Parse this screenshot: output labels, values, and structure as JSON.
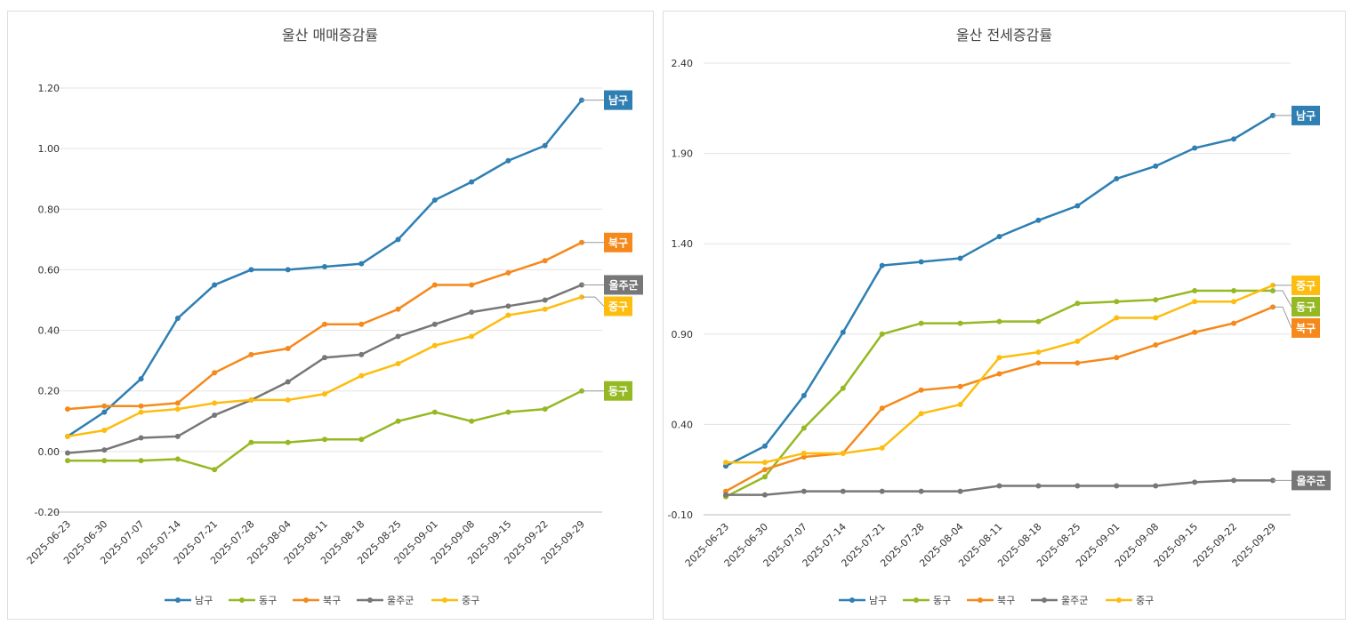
{
  "chart_data": [
    {
      "type": "line",
      "title": "울산 매매증감률",
      "xlabel": "",
      "ylabel": "",
      "ylim": [
        -0.2,
        1.2
      ],
      "ytick_step": 0.2,
      "ytick_labels": [
        "-0.20",
        "0.00",
        "0.20",
        "0.40",
        "0.60",
        "0.80",
        "1.00",
        "1.20"
      ],
      "grid": true,
      "legend": "bottom",
      "x": [
        "2025-06-23",
        "2025-06-30",
        "2025-07-07",
        "2025-07-14",
        "2025-07-21",
        "2025-07-28",
        "2025-08-04",
        "2025-08-11",
        "2025-08-18",
        "2025-08-25",
        "2025-09-01",
        "2025-09-08",
        "2025-09-15",
        "2025-09-22",
        "2025-09-29"
      ],
      "series": [
        {
          "name": "남구",
          "color": "#2f7fb3",
          "values": [
            0.05,
            0.13,
            0.24,
            0.44,
            0.55,
            0.6,
            0.6,
            0.61,
            0.62,
            0.7,
            0.83,
            0.89,
            0.96,
            1.01,
            1.16
          ]
        },
        {
          "name": "동구",
          "color": "#95b923",
          "values": [
            -0.03,
            -0.03,
            -0.03,
            -0.025,
            -0.06,
            0.03,
            0.03,
            0.04,
            0.04,
            0.1,
            0.13,
            0.1,
            0.13,
            0.14,
            0.2
          ]
        },
        {
          "name": "북구",
          "color": "#f5891b",
          "values": [
            0.14,
            0.15,
            0.15,
            0.16,
            0.26,
            0.32,
            0.34,
            0.42,
            0.42,
            0.47,
            0.55,
            0.55,
            0.59,
            0.63,
            0.69
          ]
        },
        {
          "name": "울주군",
          "color": "#777777",
          "values": [
            -0.005,
            0.005,
            0.045,
            0.05,
            0.12,
            0.17,
            0.23,
            0.31,
            0.32,
            0.38,
            0.42,
            0.46,
            0.48,
            0.5,
            0.55
          ]
        },
        {
          "name": "중구",
          "color": "#fdbd10",
          "values": [
            0.05,
            0.07,
            0.13,
            0.14,
            0.16,
            0.17,
            0.17,
            0.19,
            0.25,
            0.29,
            0.35,
            0.38,
            0.45,
            0.47,
            0.51
          ]
        }
      ]
    },
    {
      "type": "line",
      "title": "울산 전세증감률",
      "xlabel": "",
      "ylabel": "",
      "ylim": [
        -0.1,
        2.4
      ],
      "ytick_step": 0.5,
      "ytick_labels": [
        "-0.10",
        "0.40",
        "0.90",
        "1.40",
        "1.90",
        "2.40"
      ],
      "grid": true,
      "legend": "bottom",
      "x": [
        "2025-06-23",
        "2025-06-30",
        "2025-07-07",
        "2025-07-14",
        "2025-07-21",
        "2025-07-28",
        "2025-08-04",
        "2025-08-11",
        "2025-08-18",
        "2025-08-25",
        "2025-09-01",
        "2025-09-08",
        "2025-09-15",
        "2025-09-22",
        "2025-09-29"
      ],
      "series": [
        {
          "name": "남구",
          "color": "#2f7fb3",
          "values": [
            0.17,
            0.28,
            0.56,
            0.91,
            1.28,
            1.3,
            1.32,
            1.44,
            1.53,
            1.61,
            1.76,
            1.83,
            1.93,
            1.98,
            2.11
          ]
        },
        {
          "name": "동구",
          "color": "#95b923",
          "values": [
            0.0,
            0.11,
            0.38,
            0.6,
            0.9,
            0.96,
            0.96,
            0.97,
            0.97,
            1.07,
            1.08,
            1.09,
            1.14,
            1.14,
            1.14
          ]
        },
        {
          "name": "북구",
          "color": "#f5891b",
          "values": [
            0.03,
            0.15,
            0.22,
            0.24,
            0.49,
            0.59,
            0.61,
            0.68,
            0.74,
            0.74,
            0.77,
            0.84,
            0.91,
            0.96,
            1.05
          ]
        },
        {
          "name": "울주군",
          "color": "#777777",
          "values": [
            0.01,
            0.01,
            0.03,
            0.03,
            0.03,
            0.03,
            0.03,
            0.06,
            0.06,
            0.06,
            0.06,
            0.06,
            0.08,
            0.09,
            0.09
          ]
        },
        {
          "name": "중구",
          "color": "#fdbd10",
          "values": [
            0.19,
            0.19,
            0.24,
            0.24,
            0.27,
            0.46,
            0.51,
            0.77,
            0.8,
            0.86,
            0.99,
            0.99,
            1.08,
            1.08,
            1.17
          ]
        }
      ]
    }
  ]
}
